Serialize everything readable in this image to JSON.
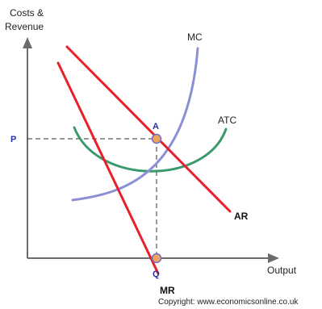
{
  "axes": {
    "y_label_line1": "Costs &",
    "y_label_line2": "Revenue",
    "x_label": "Output"
  },
  "curves": {
    "mc": "MC",
    "atc": "ATC",
    "ar": "AR",
    "mr": "MR"
  },
  "points": {
    "price": "P",
    "quantity": "Q",
    "a": "A"
  },
  "credit": "Copyright: www.economicsonline.co.uk",
  "colors": {
    "axis": "#6b6b6b",
    "demand_lines": "#e8202a",
    "mc_curve": "#8b8fd6",
    "atc_curve": "#3a9a6e",
    "guide": "#333333",
    "marker_fill": "#f2a15a",
    "marker_stroke": "#6b6fd0",
    "marker_label": "#2b2f9c"
  }
}
